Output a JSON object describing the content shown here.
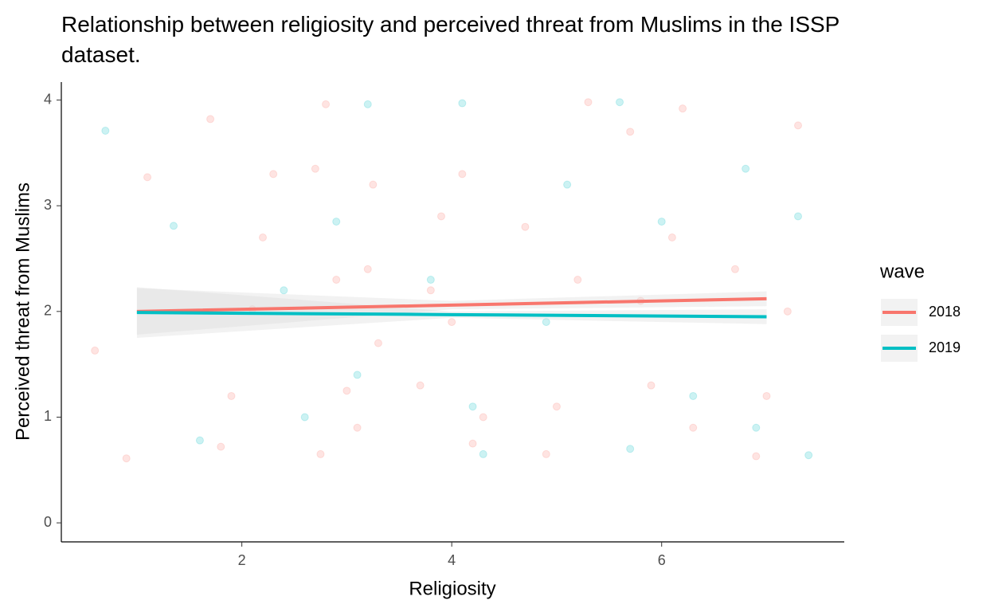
{
  "chart_data": {
    "type": "scatter",
    "title": "Relationship between religiosity and perceived threat from Muslims in the ISSP dataset.",
    "x_label": "Religiosity",
    "y_label": "Perceived threat from Muslims",
    "legend_title": "wave",
    "legend_position": "right",
    "xlim": [
      0.28,
      7.74
    ],
    "ylim": [
      -0.18,
      4.17
    ],
    "xticks": [
      2,
      4,
      6
    ],
    "yticks": [
      0,
      1,
      2,
      3,
      4
    ],
    "grid": false,
    "point_opacity": 0.2,
    "band_color": "#d9d9d9",
    "series": [
      {
        "name": "2018",
        "color": "#F8766D",
        "x": [
          0.6,
          0.9,
          1.1,
          1.7,
          1.9,
          2.1,
          2.3,
          1.8,
          2.2,
          2.7,
          2.9,
          3.1,
          3.3,
          2.8,
          3.0,
          3.2,
          2.75,
          3.25,
          3.7,
          3.9,
          4.1,
          4.3,
          3.8,
          4.2,
          4.0,
          4.7,
          5.0,
          5.3,
          4.9,
          5.2,
          5.7,
          5.9,
          6.1,
          6.3,
          5.8,
          6.2,
          6.7,
          7.0,
          7.3,
          6.9,
          7.2
        ],
        "values": [
          1.63,
          0.61,
          3.27,
          3.82,
          1.2,
          2.02,
          3.3,
          0.72,
          2.7,
          3.35,
          2.3,
          0.9,
          1.7,
          3.96,
          1.25,
          2.4,
          0.65,
          3.2,
          1.3,
          2.9,
          3.3,
          1.0,
          2.2,
          0.75,
          1.9,
          2.8,
          1.1,
          3.98,
          0.65,
          2.3,
          3.7,
          1.3,
          2.7,
          0.9,
          2.1,
          3.92,
          2.4,
          1.2,
          3.76,
          0.63,
          2.0
        ],
        "fit": {
          "x": [
            1,
            4,
            7
          ],
          "values": [
            2.0,
            2.06,
            2.12
          ],
          "lower": [
            1.78,
            2.02,
            2.05
          ],
          "upper": [
            2.22,
            2.1,
            2.19
          ]
        }
      },
      {
        "name": "2019",
        "color": "#00BFC4",
        "x": [
          0.7,
          1.35,
          1.6,
          2.4,
          2.6,
          2.9,
          3.2,
          3.1,
          3.8,
          4.1,
          4.2,
          4.3,
          4.9,
          5.1,
          5.6,
          5.7,
          6.0,
          6.3,
          6.8,
          6.9,
          7.4,
          7.3
        ],
        "values": [
          3.71,
          2.81,
          0.78,
          2.2,
          1.0,
          2.85,
          3.96,
          1.4,
          2.3,
          3.97,
          1.1,
          0.65,
          1.9,
          3.2,
          3.98,
          0.7,
          2.85,
          1.2,
          3.35,
          0.9,
          0.64,
          2.9
        ],
        "fit": {
          "x": [
            1,
            4,
            7
          ],
          "values": [
            1.99,
            1.97,
            1.95
          ],
          "lower": [
            1.75,
            1.94,
            1.88
          ],
          "upper": [
            2.23,
            2.0,
            2.02
          ]
        }
      }
    ]
  }
}
